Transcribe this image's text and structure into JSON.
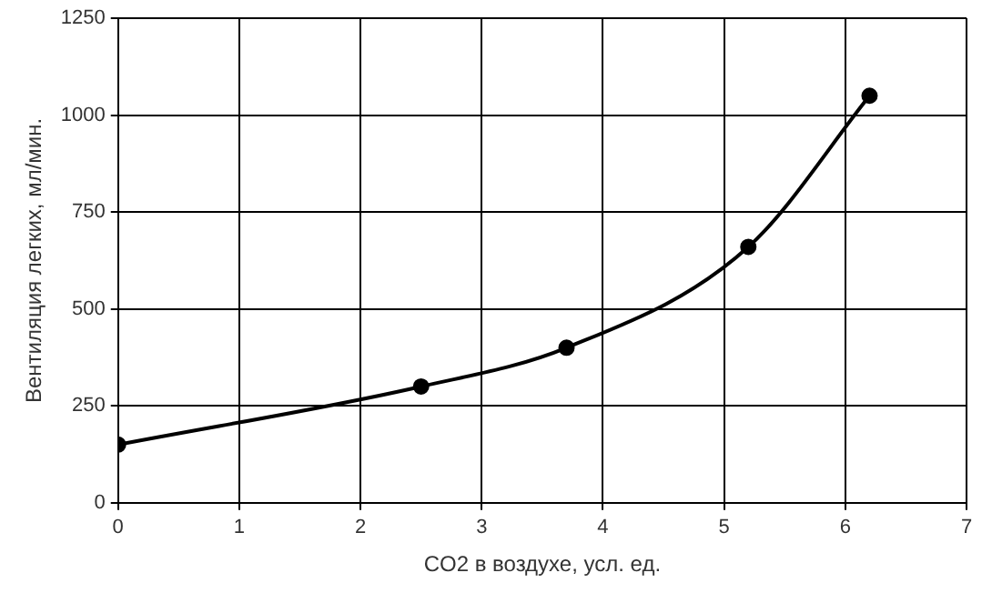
{
  "chart_data": {
    "type": "line",
    "xlabel": "CO2 в воздухе, усл. ед.",
    "ylabel": "Вентиляция легких, мл/мин.",
    "x": [
      0,
      2.5,
      3.7,
      5.2,
      6.2
    ],
    "series": [
      {
        "color": "#000000",
        "values": [
          150,
          300,
          400,
          660,
          1050
        ]
      }
    ],
    "xlim": [
      0,
      7
    ],
    "xticks": [
      0,
      1,
      2,
      3,
      4,
      5,
      6,
      7
    ],
    "ylim": [
      0,
      1250
    ],
    "yticks": [
      0,
      250,
      500,
      750,
      1000,
      1250
    ],
    "grid": true,
    "legend": false,
    "marker": "circle",
    "line_style": "solid"
  }
}
